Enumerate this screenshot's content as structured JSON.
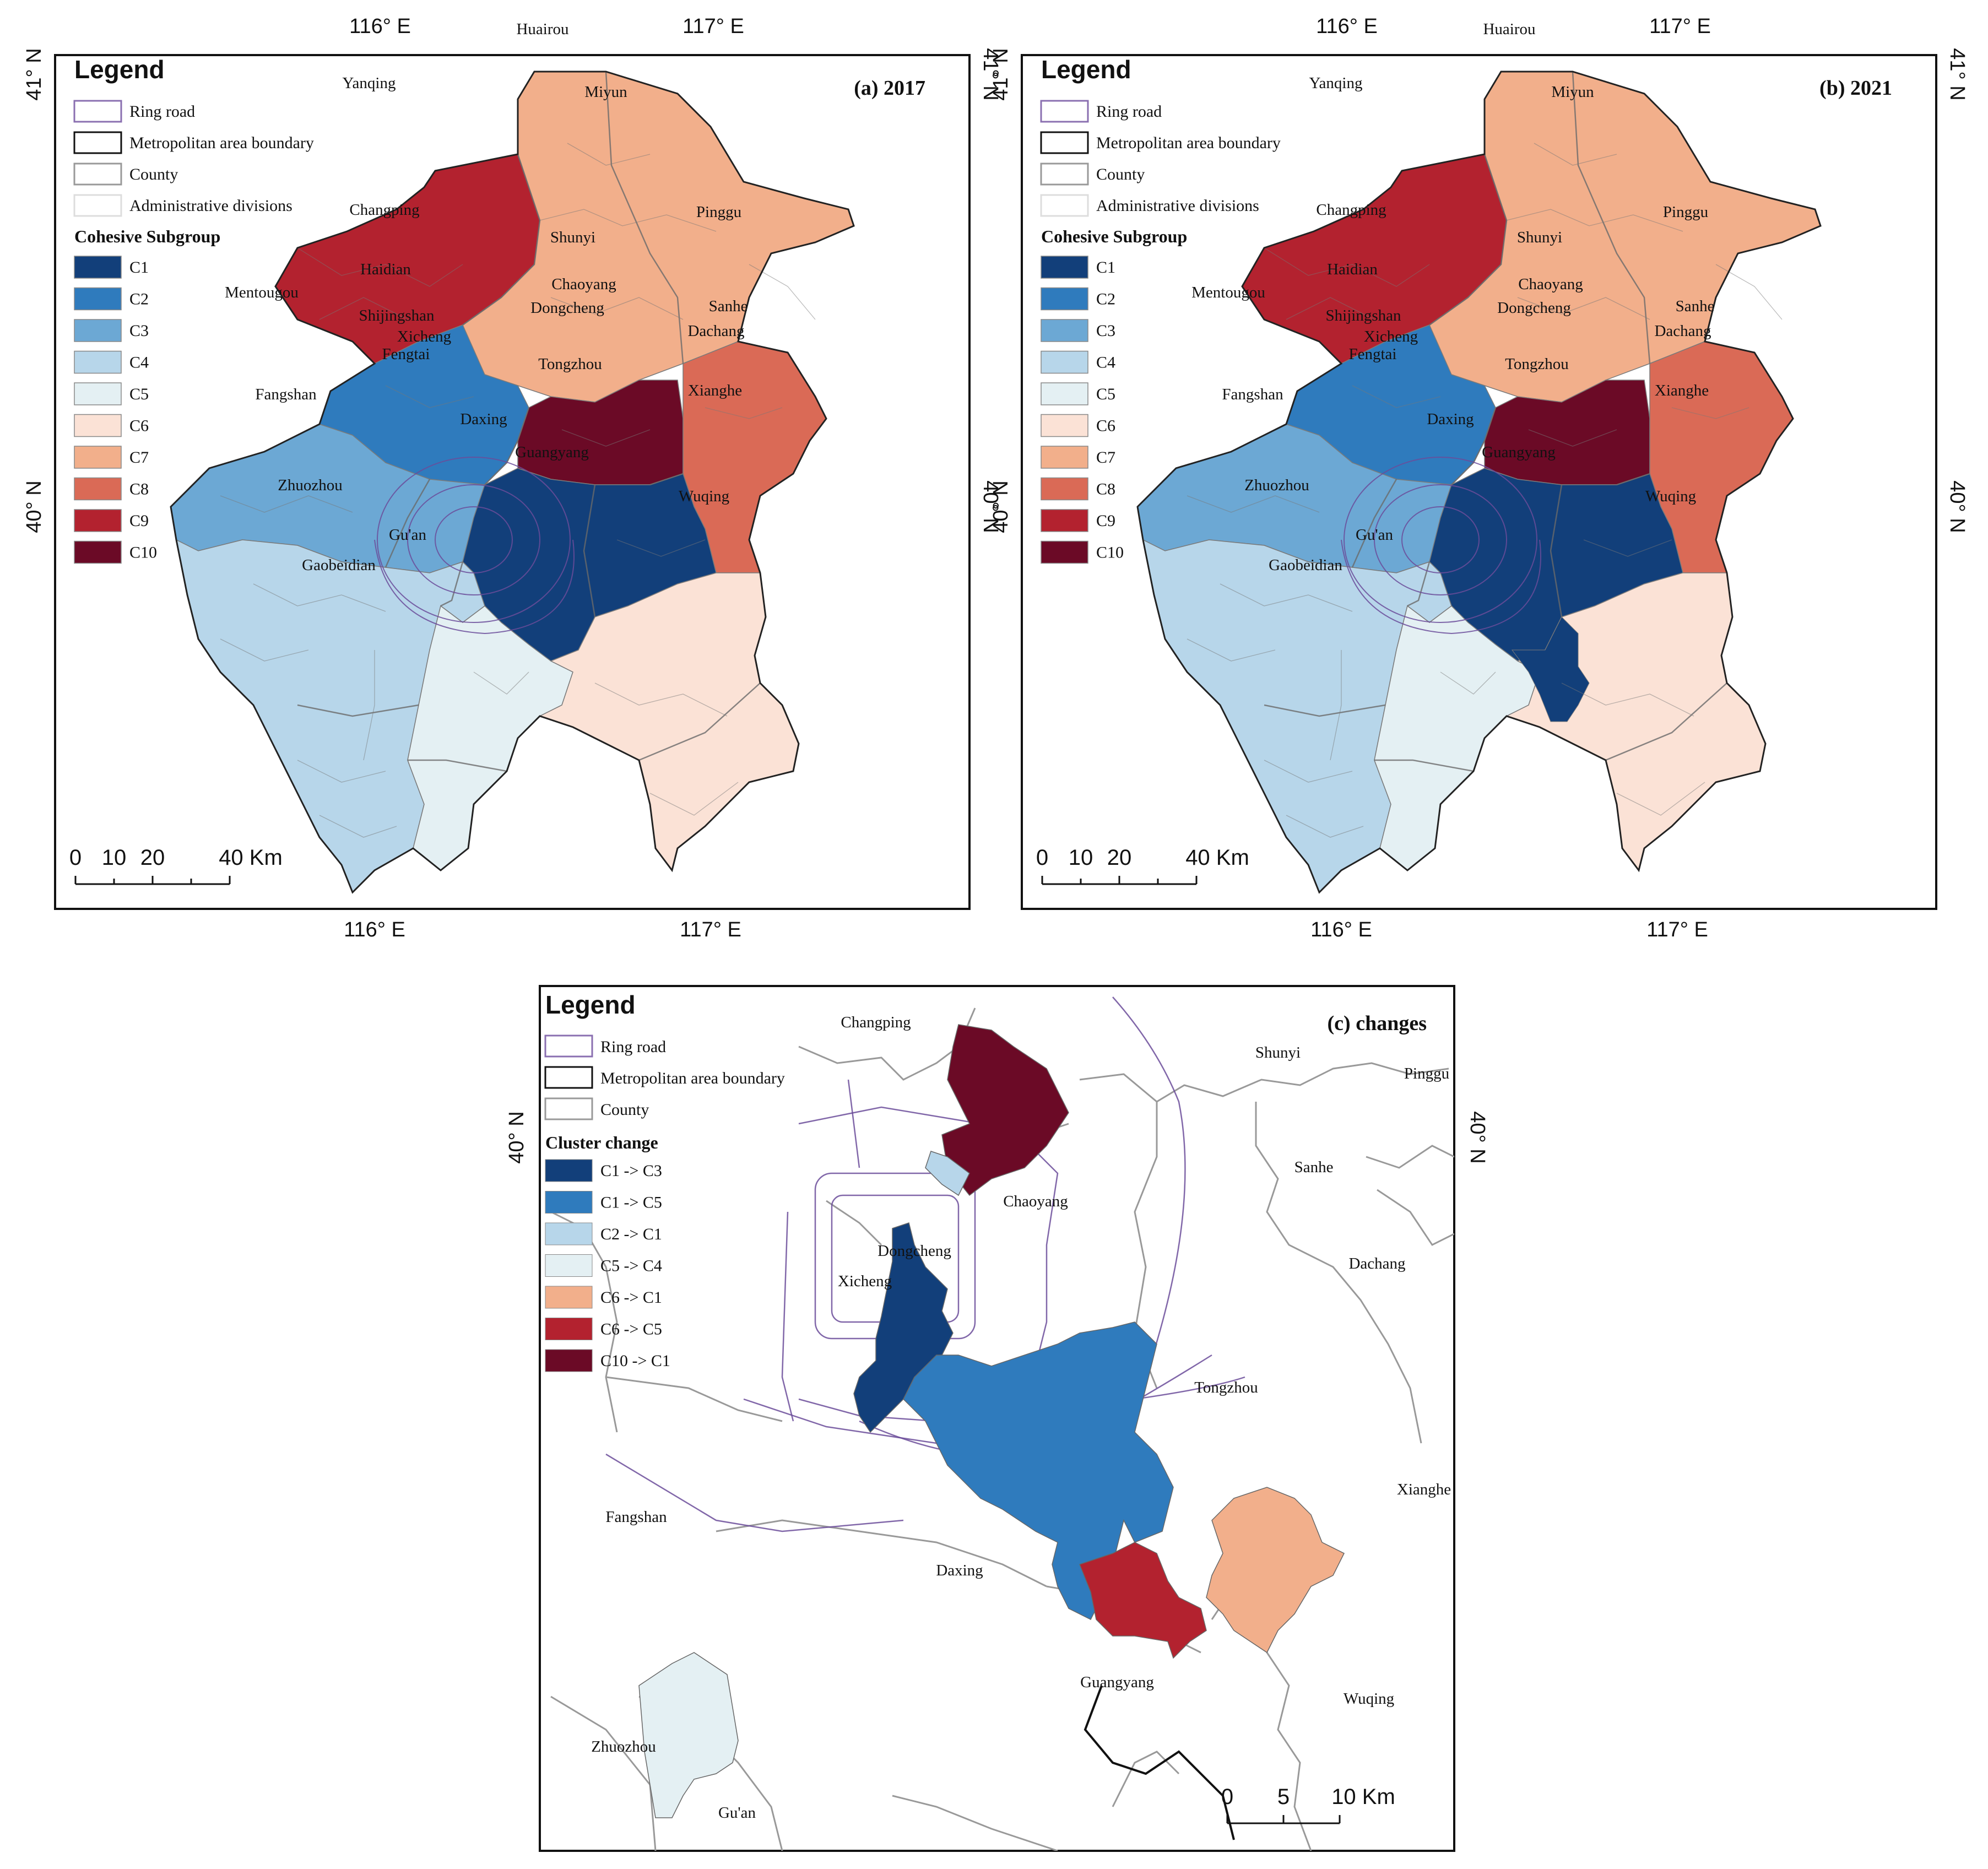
{
  "colors": {
    "C1": "#123f7a",
    "C2": "#2f7bbd",
    "C3": "#6ca8d4",
    "C4": "#b7d6ea",
    "C5": "#e4f0f3",
    "C6": "#fbe2d6",
    "C7": "#f2af8b",
    "C8": "#da6a56",
    "C9": "#b3222f",
    "C10": "#6b0a26",
    "chg1": "#123f7a",
    "chg2": "#2f7bbd",
    "chg3": "#b7d6ea",
    "chg4": "#e4f0f3",
    "chg5": "#f2af8b",
    "chg6": "#b3222f",
    "chg7": "#6b0a26"
  },
  "panelA": {
    "title": "(a) 2017",
    "lon_top": [
      "116° E",
      "117° E"
    ],
    "lon_bottom": [
      "116° E",
      "117° E"
    ],
    "lat_left": [
      "41° N",
      "40° N"
    ],
    "lat_right": [
      "41° N",
      "40° N"
    ],
    "legend": {
      "title": "Legend",
      "items": [
        "Ring road",
        "Metropolitan area boundary",
        "County",
        "Administrative divisions"
      ],
      "subgroup_title": "Cohesive Subgroup",
      "classes": [
        "C1",
        "C2",
        "C3",
        "C4",
        "C5",
        "C6",
        "C7",
        "C8",
        "C9",
        "C10"
      ]
    },
    "scale": [
      "0",
      "10",
      "20",
      "40 Km"
    ],
    "places": [
      "Huairou",
      "Yanqing",
      "Miyun",
      "Changping",
      "Pinggu",
      "Shunyi",
      "Haidian",
      "Mentougou",
      "Chaoyang",
      "Dongcheng",
      "Shijingshan",
      "Xicheng",
      "Sanhe",
      "Dachang",
      "Fengtai",
      "Tongzhou",
      "Fangshan",
      "Xianghe",
      "Daxing",
      "Guangyang",
      "Zhuozhou",
      "Wuqing",
      "Gu'an",
      "Gaobeidian"
    ]
  },
  "panelB": {
    "title": "(b) 2021",
    "lon_top": [
      "116° E",
      "117° E"
    ],
    "lon_bottom": [
      "116° E",
      "117° E"
    ],
    "lat_left": [
      "41° N",
      "40° N"
    ],
    "lat_right": [
      "41° N",
      "40° N"
    ],
    "legend": {
      "title": "Legend",
      "items": [
        "Ring road",
        "Metropolitan area boundary",
        "County",
        "Administrative divisions"
      ],
      "subgroup_title": "Cohesive Subgroup",
      "classes": [
        "C1",
        "C2",
        "C3",
        "C4",
        "C5",
        "C6",
        "C7",
        "C8",
        "C9",
        "C10"
      ]
    },
    "scale": [
      "0",
      "10",
      "20",
      "40 Km"
    ],
    "places": [
      "Huairou",
      "Yanqing",
      "Miyun",
      "Changping",
      "Pinggu",
      "Shunyi",
      "Haidian",
      "Mentougou",
      "Chaoyang",
      "Dongcheng",
      "Shijingshan",
      "Xicheng",
      "Sanhe",
      "Dachang",
      "Fengtai",
      "Tongzhou",
      "Fangshan",
      "Xianghe",
      "Daxing",
      "Guangyang",
      "Zhuozhou",
      "Wuqing",
      "Gu'an",
      "Gaobeidian"
    ]
  },
  "panelC": {
    "title": "(c) changes",
    "lat_left": "40° N",
    "lat_right": "40° N",
    "legend": {
      "title": "Legend",
      "items": [
        "Ring road",
        "Metropolitan area boundary",
        "County"
      ],
      "change_title": "Cluster change",
      "changes": [
        "C1 -> C3",
        "C1 -> C5",
        "C2 -> C1",
        "C5 -> C4",
        "C6 -> C1",
        "C6 -> C5",
        "C10 -> C1"
      ]
    },
    "scale": [
      "0",
      "5",
      "10 Km"
    ],
    "places": [
      "Changping",
      "Shunyi",
      "Pinggu",
      "Sanhe",
      "Chaoyang",
      "Dongcheng",
      "Xicheng",
      "Dachang",
      "Tongzhou",
      "Xianghe",
      "Fangshan",
      "Daxing",
      "Guangyang",
      "Wuqing",
      "Zhuozhou",
      "Gu'an"
    ]
  }
}
